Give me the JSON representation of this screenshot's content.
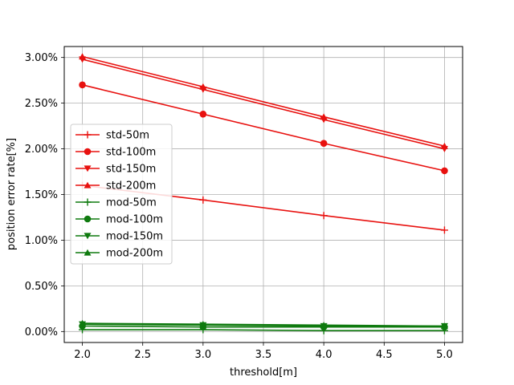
{
  "chart_data": {
    "type": "line",
    "title": "",
    "xlabel": "threshold[m]",
    "ylabel": "position error rate[%]",
    "x": [
      2,
      3,
      4,
      5
    ],
    "xlim": [
      1.85,
      5.15
    ],
    "ylim": [
      -0.0012,
      0.0312
    ],
    "xticks": [
      2.0,
      2.5,
      3.0,
      3.5,
      4.0,
      4.5,
      5.0
    ],
    "xtick_labels": [
      "2.0",
      "2.5",
      "3.0",
      "3.5",
      "4.0",
      "4.5",
      "5.0"
    ],
    "yticks": [
      0,
      0.005,
      0.01,
      0.015,
      0.02,
      0.025,
      0.03
    ],
    "ytick_labels": [
      "0.00%",
      "0.50%",
      "1.00%",
      "1.50%",
      "2.00%",
      "2.50%",
      "3.00%"
    ],
    "grid": true,
    "legend_position": "center-left",
    "colors": {
      "std": "#e8110f",
      "mod": "#0f7a0f"
    },
    "series": [
      {
        "name": "std-50m",
        "group": "std",
        "marker": "plus",
        "values": [
          0.016,
          0.0144,
          0.0127,
          0.0111
        ]
      },
      {
        "name": "std-100m",
        "group": "std",
        "marker": "circle",
        "values": [
          0.027,
          0.0238,
          0.0206,
          0.0176
        ]
      },
      {
        "name": "std-150m",
        "group": "std",
        "marker": "tri-down",
        "values": [
          0.0298,
          0.0265,
          0.0232,
          0.02
        ]
      },
      {
        "name": "std-200m",
        "group": "std",
        "marker": "tri-up",
        "values": [
          0.0301,
          0.0268,
          0.0235,
          0.0203
        ]
      },
      {
        "name": "mod-50m",
        "group": "mod",
        "marker": "plus",
        "values": [
          0.0002,
          0.0002,
          0.0001,
          0.0001
        ]
      },
      {
        "name": "mod-100m",
        "group": "mod",
        "marker": "circle",
        "values": [
          0.0006,
          0.0005,
          0.0005,
          0.0005
        ]
      },
      {
        "name": "mod-150m",
        "group": "mod",
        "marker": "tri-down",
        "values": [
          0.0008,
          0.0007,
          0.0006,
          0.0006
        ]
      },
      {
        "name": "mod-200m",
        "group": "mod",
        "marker": "tri-up",
        "values": [
          0.0009,
          0.0008,
          0.0007,
          0.0006
        ]
      }
    ]
  }
}
